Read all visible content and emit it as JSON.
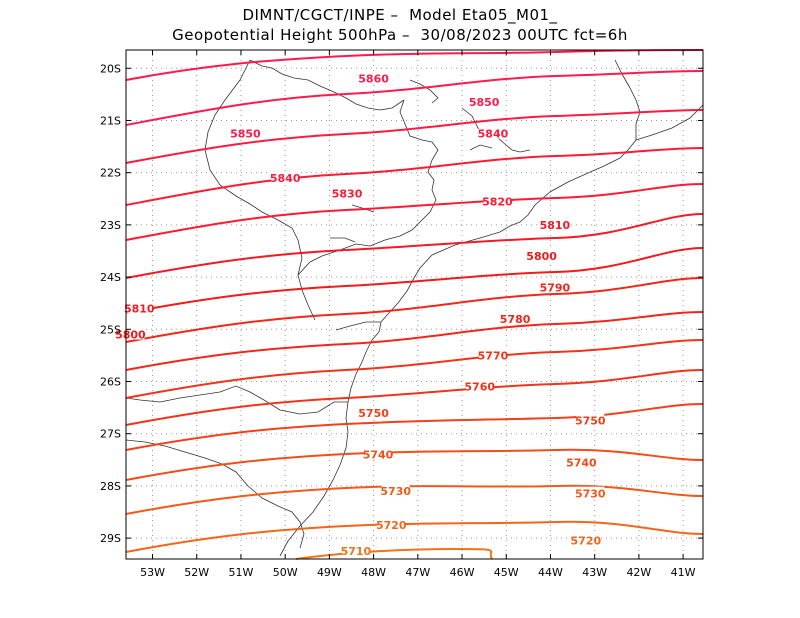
{
  "title_line1": "DIMNT/CGCT/INPE –  Model Eta05_M01_",
  "title_line2": "Geopotential Height 500hPa –  30/08/2023 00UTC fct=6h",
  "lat_ticks": [
    "20S",
    "21S",
    "22S",
    "23S",
    "24S",
    "25S",
    "26S",
    "27S",
    "28S",
    "29S"
  ],
  "lon_ticks": [
    "53W",
    "52W",
    "51W",
    "50W",
    "49W",
    "48W",
    "47W",
    "46W",
    "45W",
    "44W",
    "43W",
    "42W",
    "41W"
  ],
  "contours": [
    {
      "value": "5860",
      "color": "#ff1a4d",
      "labels": [
        {
          "lon": -48.0,
          "lat": -20.2
        }
      ]
    },
    {
      "value": "5850",
      "color": "#ff1a4d",
      "labels": [
        {
          "lon": -50.9,
          "lat": -21.25
        },
        {
          "lon": -45.5,
          "lat": -20.65
        }
      ]
    },
    {
      "value": "5840",
      "color": "#ff1a40",
      "labels": [
        {
          "lon": -50.0,
          "lat": -22.1
        },
        {
          "lon": -45.3,
          "lat": -21.25
        }
      ]
    },
    {
      "value": "5830",
      "color": "#ff1a33",
      "labels": [
        {
          "lon": -48.6,
          "lat": -22.4
        }
      ]
    },
    {
      "value": "5820",
      "color": "#ff1a33",
      "labels": [
        {
          "lon": -45.2,
          "lat": -22.55
        }
      ]
    },
    {
      "value": "5810",
      "color": "#f21a26",
      "labels": [
        {
          "lon": -53.3,
          "lat": -24.6
        },
        {
          "lon": -43.9,
          "lat": -23.0
        }
      ]
    },
    {
      "value": "5800",
      "color": "#f21a1a",
      "labels": [
        {
          "lon": -53.5,
          "lat": -25.1
        },
        {
          "lon": -44.2,
          "lat": -23.6
        }
      ]
    },
    {
      "value": "5790",
      "color": "#f2261a",
      "labels": [
        {
          "lon": -43.9,
          "lat": -24.2
        }
      ]
    },
    {
      "value": "5780",
      "color": "#f2261a",
      "labels": [
        {
          "lon": -44.8,
          "lat": -24.8
        }
      ]
    },
    {
      "value": "5770",
      "color": "#f2331a",
      "labels": [
        {
          "lon": -45.3,
          "lat": -25.5
        }
      ]
    },
    {
      "value": "5760",
      "color": "#f2331a",
      "labels": [
        {
          "lon": -45.6,
          "lat": -26.1
        }
      ]
    },
    {
      "value": "5750",
      "color": "#f2401a",
      "labels": [
        {
          "lon": -48.0,
          "lat": -26.6
        },
        {
          "lon": -43.1,
          "lat": -26.75
        }
      ]
    },
    {
      "value": "5740",
      "color": "#f24d1a",
      "labels": [
        {
          "lon": -47.9,
          "lat": -27.4
        },
        {
          "lon": -43.3,
          "lat": -27.55
        }
      ]
    },
    {
      "value": "5730",
      "color": "#f2591a",
      "labels": [
        {
          "lon": -47.5,
          "lat": -28.1
        },
        {
          "lon": -43.1,
          "lat": -28.15
        }
      ]
    },
    {
      "value": "5720",
      "color": "#f2661a",
      "labels": [
        {
          "lon": -47.6,
          "lat": -28.75
        },
        {
          "lon": -43.2,
          "lat": -29.05
        }
      ]
    },
    {
      "value": "5710",
      "color": "#f2731a",
      "labels": [
        {
          "lon": -48.4,
          "lat": -29.25
        }
      ]
    }
  ]
}
